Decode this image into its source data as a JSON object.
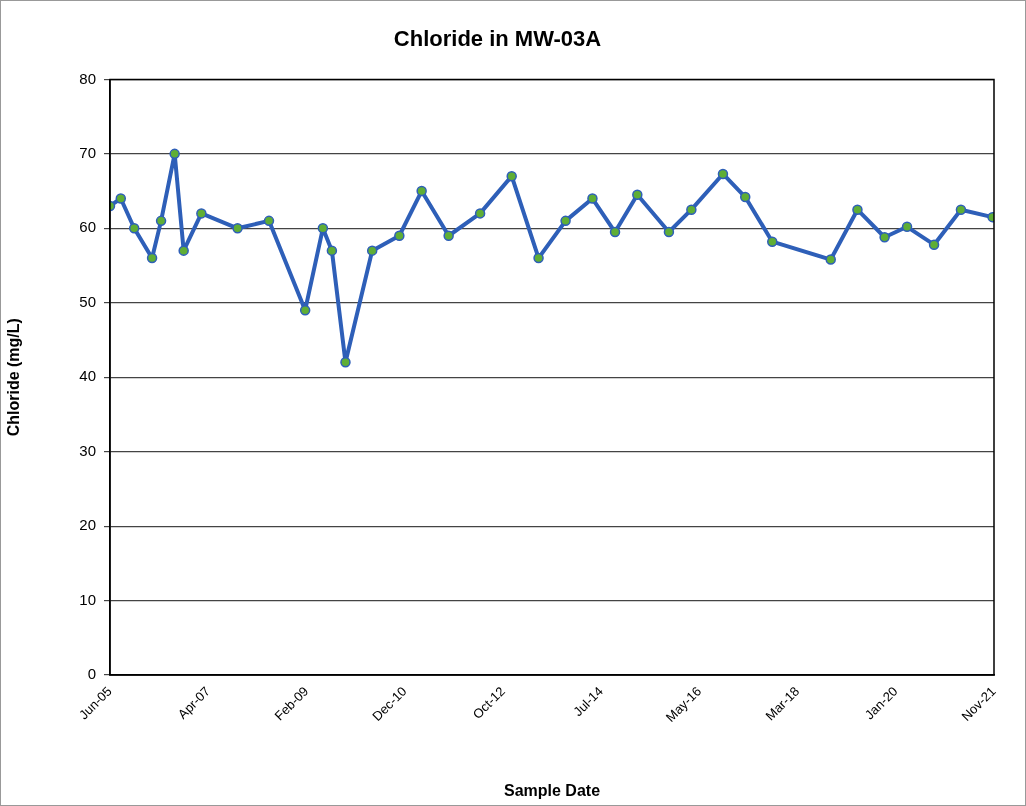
{
  "chart_data": {
    "type": "line",
    "title": "Chloride in MW-03A",
    "xlabel": "Sample Date",
    "ylabel": "Chloride (mg/L)",
    "x": [
      "2005-06-20",
      "2005-09",
      "2005-12",
      "2006-04",
      "2006-06",
      "2006-09",
      "2006-11",
      "2007-03",
      "2007-11",
      "2008-06",
      "2009-02",
      "2009-06",
      "2009-08",
      "2009-11",
      "2010-05",
      "2010-11",
      "2011-04",
      "2011-10",
      "2012-05",
      "2012-12",
      "2013-06",
      "2013-12",
      "2014-06",
      "2014-11",
      "2015-04",
      "2015-11",
      "2016-04",
      "2016-11",
      "2017-04",
      "2017-10",
      "2018-11",
      "2019-05",
      "2019-11",
      "2020-04",
      "2020-10",
      "2021-04",
      "2021-11"
    ],
    "series": [
      {
        "color": "#2e5fb8",
        "values": [
          63,
          64,
          60,
          56,
          61,
          70,
          57,
          62,
          60,
          61,
          49,
          60,
          57,
          42,
          57,
          59,
          65,
          59,
          62,
          67,
          56,
          61,
          64,
          59.5,
          64.5,
          59.5,
          62.5,
          67.3,
          64.2,
          58.2,
          55.8,
          62.5,
          58.8,
          60.2,
          57.8,
          62.5,
          61.5
        ]
      }
    ],
    "xlim": [
      "2005-06-20",
      "2021-11-11"
    ],
    "xticks": [
      {
        "value": "2005-06-20",
        "label": "Jun-05"
      },
      {
        "value": "2007-04-17",
        "label": "Apr-07"
      },
      {
        "value": "2009-02-11",
        "label": "Feb-09"
      },
      {
        "value": "2010-12-09",
        "label": "Dec-10"
      },
      {
        "value": "2012-10-05",
        "label": "Oct-12"
      },
      {
        "value": "2014-07-31",
        "label": "Jul-14"
      },
      {
        "value": "2016-05-26",
        "label": "May-16"
      },
      {
        "value": "2018-03-22",
        "label": "Mar-18"
      },
      {
        "value": "2020-01-16",
        "label": "Jan-20"
      },
      {
        "value": "2021-11-11",
        "label": "Nov-21"
      }
    ],
    "ylim": [
      0,
      80
    ],
    "yticks": [
      0,
      10,
      20,
      30,
      40,
      50,
      60,
      70,
      80
    ],
    "grid": "y",
    "marker": "circle",
    "line_style": "solid",
    "legend": false
  }
}
